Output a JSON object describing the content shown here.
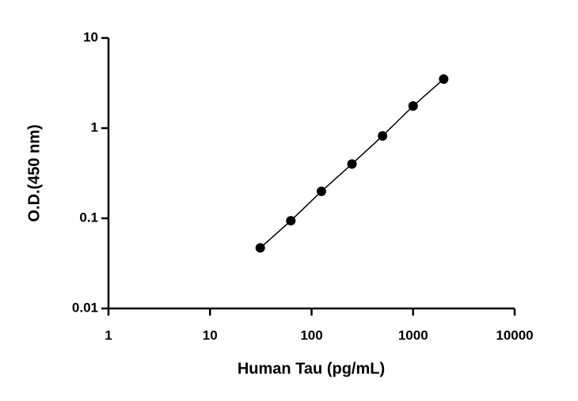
{
  "chart_data": {
    "type": "scatter",
    "x_label": "Human Tau (pg/mL)",
    "y_label": "O.D.(450 nm)",
    "x": [
      31.25,
      62.5,
      125,
      250,
      500,
      1000,
      2000
    ],
    "series": [
      {
        "values": [
          0.047,
          0.094,
          0.199,
          0.4,
          0.82,
          1.76,
          3.5
        ],
        "color": "#000000"
      }
    ],
    "xlim": [
      1,
      10000
    ],
    "xticks": [
      1,
      10,
      100,
      1000,
      10000
    ],
    "ylim": [
      0.01,
      10
    ],
    "yticks": [
      0.01,
      0.1,
      1,
      10
    ],
    "xscale": "log",
    "yscale": "log",
    "connect": true
  }
}
